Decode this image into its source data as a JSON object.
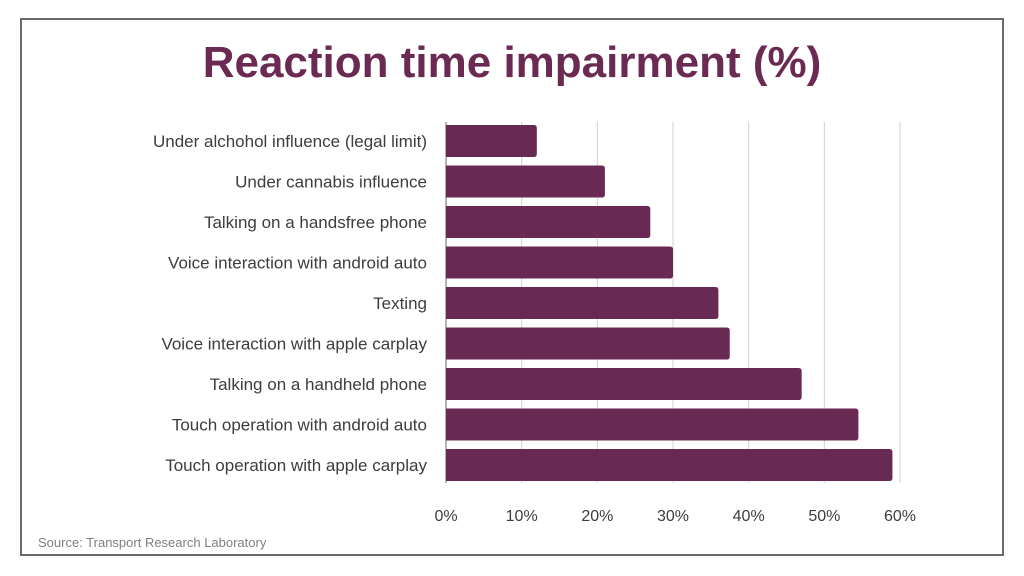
{
  "chart_data": {
    "type": "bar",
    "orientation": "horizontal",
    "title": "Reaction time impairment (%)",
    "source": "Source: Transport Research Laboratory",
    "categories": [
      "Under alchohol influence (legal limit)",
      "Under cannabis influence",
      "Talking on a handsfree phone",
      "Voice interaction with android auto",
      "Texting",
      "Voice interaction with apple carplay",
      "Talking on a handheld phone",
      "Touch operation with android auto",
      "Touch operation with apple carplay"
    ],
    "values": [
      12,
      21,
      27,
      30,
      36,
      37.5,
      47,
      54.5,
      59
    ],
    "xlim": [
      0,
      60
    ],
    "xticks": [
      "0%",
      "10%",
      "20%",
      "30%",
      "40%",
      "50%",
      "60%"
    ],
    "grid": "vertical",
    "bar_color": "#682a53"
  }
}
